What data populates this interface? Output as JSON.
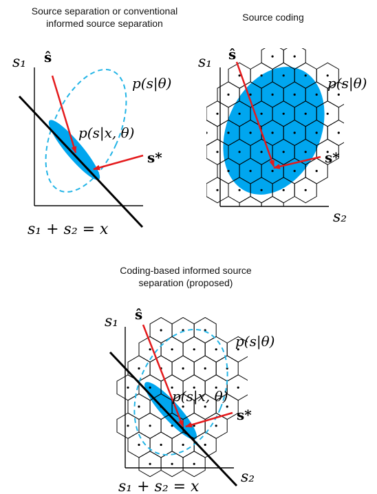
{
  "colors": {
    "ellipse_fill": "#00a6ef",
    "prior_dash": "#22b4e6",
    "arrow": "#e41a1c",
    "ink": "#000000"
  },
  "panels": [
    {
      "title_lines": [
        "Source separation or conventional",
        "informed source separation"
      ],
      "label_s1": "s₁",
      "label_s2": "",
      "label_shat": "ŝ",
      "label_prior": "p(s|θ)",
      "label_posterior": "p(s|x, θ)",
      "label_sstar": "s*",
      "label_constraint": "s₁ + s₂ = x"
    },
    {
      "title_lines": [
        "Source coding"
      ],
      "label_s1": "s₁",
      "label_s2": "s₂",
      "label_shat": "ŝ",
      "label_prior": "p(s|θ)",
      "label_sstar": "s*"
    },
    {
      "title_lines": [
        "Coding-based informed source",
        "separation (proposed)"
      ],
      "label_s1": "s₁",
      "label_s2": "s₂",
      "label_shat": "ŝ",
      "label_prior": "p(s|θ)",
      "label_posterior": "p(s|x, θ)",
      "label_sstar": "s*",
      "label_constraint": "s₁ + s₂ = x"
    }
  ]
}
